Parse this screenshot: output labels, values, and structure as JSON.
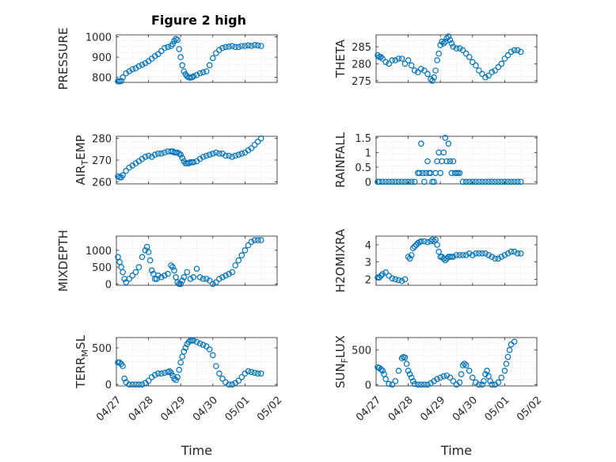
{
  "figure": {
    "title": "Figure 2 high",
    "marker_color": "#0072BD",
    "grid_color": "#d9d9d9",
    "axis_color": "#262626",
    "time_xlabel": "Time"
  },
  "chart_data": [
    {
      "type": "scatter",
      "title": "Figure 2 high",
      "ylabel": "PRESSURE",
      "xlim": [
        0,
        5
      ],
      "ylim": [
        775,
        1010
      ],
      "yticks": [
        800,
        900,
        1000
      ],
      "ytick_labels": [
        "800",
        "900",
        "1000"
      ],
      "xtick_labels": [],
      "grid": true,
      "x": [
        0.05,
        0.1,
        0.15,
        0.2,
        0.3,
        0.4,
        0.5,
        0.6,
        0.7,
        0.8,
        0.9,
        1.0,
        1.1,
        1.2,
        1.3,
        1.4,
        1.5,
        1.6,
        1.7,
        1.75,
        1.8,
        1.85,
        1.9,
        1.95,
        2.0,
        2.05,
        2.1,
        2.15,
        2.2,
        2.25,
        2.3,
        2.35,
        2.4,
        2.5,
        2.6,
        2.7,
        2.8,
        2.9,
        3.0,
        3.1,
        3.2,
        3.3,
        3.4,
        3.5,
        3.6,
        3.7,
        3.8,
        3.9,
        4.0,
        4.1,
        4.2,
        4.3,
        4.4,
        4.5
      ],
      "y": [
        780,
        780,
        782,
        800,
        820,
        830,
        840,
        845,
        855,
        862,
        870,
        880,
        892,
        905,
        915,
        930,
        945,
        950,
        955,
        965,
        980,
        990,
        985,
        940,
        900,
        860,
        830,
        815,
        805,
        800,
        798,
        800,
        805,
        812,
        820,
        825,
        830,
        860,
        895,
        920,
        935,
        945,
        950,
        952,
        955,
        950,
        950,
        955,
        955,
        958,
        955,
        960,
        958,
        955
      ]
    },
    {
      "type": "scatter",
      "ylabel": "THETA",
      "xlim": [
        0,
        5
      ],
      "ylim": [
        274.5,
        288.5
      ],
      "yticks": [
        275,
        280,
        285
      ],
      "ytick_labels": [
        "275",
        "280",
        "285"
      ],
      "xtick_labels": [],
      "grid": true,
      "x": [
        0.05,
        0.1,
        0.15,
        0.2,
        0.3,
        0.4,
        0.5,
        0.6,
        0.7,
        0.8,
        0.9,
        1.0,
        1.1,
        1.2,
        1.3,
        1.4,
        1.5,
        1.6,
        1.7,
        1.75,
        1.8,
        1.85,
        1.9,
        1.95,
        2.0,
        2.05,
        2.1,
        2.15,
        2.2,
        2.25,
        2.3,
        2.35,
        2.4,
        2.5,
        2.6,
        2.7,
        2.8,
        2.9,
        3.0,
        3.1,
        3.2,
        3.3,
        3.4,
        3.5,
        3.6,
        3.7,
        3.8,
        3.9,
        4.0,
        4.1,
        4.2,
        4.3,
        4.4,
        4.5
      ],
      "y": [
        282.5,
        282,
        282,
        281.5,
        280.5,
        280,
        281,
        281,
        281.5,
        281.5,
        280,
        281,
        279.5,
        278,
        277.5,
        278.5,
        278,
        277,
        275.5,
        275,
        276,
        278,
        281,
        283,
        285.5,
        286.5,
        286,
        286.5,
        287.5,
        288,
        287,
        286,
        285,
        284.5,
        284.5,
        284,
        283,
        282,
        280.5,
        279.5,
        278,
        277,
        276,
        276.5,
        277.5,
        278,
        279,
        280,
        281.5,
        282.5,
        283.5,
        284,
        284,
        283.5
      ]
    },
    {
      "type": "scatter",
      "ylabel": "AIR_TEMP",
      "ylabel_parts": {
        "main": "AIR",
        "sub": "T",
        "rest": "EMP"
      },
      "xlim": [
        0,
        5
      ],
      "ylim": [
        259,
        281
      ],
      "yticks": [
        260,
        270,
        280
      ],
      "ytick_labels": [
        "260",
        "270",
        "280"
      ],
      "xtick_labels": [],
      "grid": true,
      "x": [
        0.05,
        0.1,
        0.15,
        0.2,
        0.3,
        0.4,
        0.5,
        0.6,
        0.7,
        0.8,
        0.9,
        1.0,
        1.1,
        1.2,
        1.3,
        1.4,
        1.5,
        1.6,
        1.7,
        1.75,
        1.8,
        1.85,
        1.9,
        1.95,
        2.0,
        2.05,
        2.1,
        2.15,
        2.2,
        2.25,
        2.3,
        2.35,
        2.4,
        2.5,
        2.6,
        2.7,
        2.8,
        2.9,
        3.0,
        3.1,
        3.2,
        3.3,
        3.4,
        3.5,
        3.6,
        3.7,
        3.8,
        3.9,
        4.0,
        4.1,
        4.2,
        4.3,
        4.4,
        4.5
      ],
      "y": [
        262.5,
        262,
        262,
        263,
        265,
        266.5,
        267.5,
        268.5,
        269.5,
        270.5,
        271.5,
        272,
        271.5,
        272.5,
        273,
        273,
        273.5,
        274,
        274,
        274,
        273.5,
        273.5,
        273.5,
        273,
        272.5,
        271,
        269.5,
        268.5,
        268.5,
        268.5,
        269,
        269,
        269,
        269.5,
        270.5,
        271.5,
        272,
        272.5,
        273,
        273.5,
        273,
        273,
        272,
        272,
        271.5,
        272,
        272.5,
        273,
        273.5,
        274.5,
        275.5,
        277,
        278.5,
        280
      ]
    },
    {
      "type": "scatter",
      "ylabel": "RAINFALL",
      "xlim": [
        0,
        5
      ],
      "ylim": [
        -0.07,
        1.55
      ],
      "yticks": [
        0,
        0.5,
        1,
        1.5
      ],
      "ytick_labels": [
        "0",
        "0.5",
        "1",
        "1.5"
      ],
      "xtick_labels": [],
      "grid": true,
      "x": [
        0.05,
        0.1,
        0.2,
        0.3,
        0.4,
        0.5,
        0.6,
        0.7,
        0.8,
        0.9,
        1.0,
        1.1,
        1.2,
        1.3,
        1.35,
        1.4,
        1.45,
        1.5,
        1.55,
        1.6,
        1.65,
        1.7,
        1.75,
        1.8,
        1.85,
        1.9,
        1.95,
        2.0,
        2.05,
        2.1,
        2.15,
        2.2,
        2.25,
        2.3,
        2.35,
        2.4,
        2.45,
        2.5,
        2.55,
        2.6,
        2.7,
        2.8,
        2.9,
        3.0,
        3.1,
        3.2,
        3.3,
        3.4,
        3.5,
        3.6,
        3.7,
        3.8,
        3.9,
        4.0,
        4.1,
        4.2,
        4.3,
        4.4,
        4.5
      ],
      "y": [
        0,
        0,
        0,
        0,
        0,
        0,
        0,
        0,
        0,
        0,
        0,
        0,
        0,
        0.3,
        0.3,
        1.3,
        0.3,
        0,
        0.3,
        0.7,
        0.3,
        0.3,
        0,
        0,
        0.3,
        0.7,
        1.0,
        0.3,
        0.7,
        1.0,
        1.5,
        0.7,
        1.3,
        0.7,
        0.3,
        0.7,
        0.3,
        0.3,
        0.3,
        0.3,
        0,
        0,
        0,
        0,
        0,
        0,
        0,
        0,
        0,
        0,
        0,
        0,
        0,
        0,
        0,
        0,
        0,
        0,
        0
      ]
    },
    {
      "type": "scatter",
      "ylabel": "MIXDEPTH",
      "xlim": [
        0,
        5
      ],
      "ylim": [
        -40,
        1420
      ],
      "yticks": [
        0,
        500,
        1000
      ],
      "ytick_labels": [
        "0",
        "500",
        "1000"
      ],
      "xtick_labels": [],
      "grid": true,
      "x": [
        0.05,
        0.1,
        0.15,
        0.2,
        0.25,
        0.3,
        0.4,
        0.5,
        0.6,
        0.7,
        0.8,
        0.9,
        0.95,
        1.0,
        1.05,
        1.1,
        1.15,
        1.2,
        1.25,
        1.3,
        1.4,
        1.5,
        1.6,
        1.7,
        1.75,
        1.8,
        1.85,
        1.9,
        1.95,
        2.0,
        2.05,
        2.1,
        2.2,
        2.3,
        2.4,
        2.5,
        2.6,
        2.7,
        2.8,
        2.9,
        3.0,
        3.1,
        3.2,
        3.3,
        3.4,
        3.5,
        3.6,
        3.7,
        3.8,
        3.9,
        4.0,
        4.1,
        4.2,
        4.3,
        4.4,
        4.5
      ],
      "y": [
        800,
        650,
        500,
        350,
        150,
        50,
        150,
        250,
        350,
        500,
        800,
        1000,
        1100,
        950,
        700,
        400,
        300,
        150,
        150,
        250,
        200,
        250,
        300,
        550,
        500,
        400,
        200,
        50,
        0,
        0,
        100,
        200,
        350,
        150,
        200,
        450,
        200,
        150,
        150,
        100,
        0,
        50,
        150,
        200,
        250,
        300,
        350,
        550,
        700,
        850,
        1000,
        1150,
        1250,
        1300,
        1300,
        1300
      ]
    },
    {
      "type": "scatter",
      "ylabel": "H2OMIXRA",
      "xlim": [
        0,
        5
      ],
      "ylim": [
        1.65,
        4.5
      ],
      "yticks": [
        2,
        3,
        4
      ],
      "ytick_labels": [
        "2",
        "3",
        "4"
      ],
      "xtick_labels": [],
      "grid": true,
      "x": [
        0.05,
        0.1,
        0.15,
        0.2,
        0.3,
        0.4,
        0.5,
        0.6,
        0.7,
        0.8,
        0.9,
        1.0,
        1.05,
        1.1,
        1.15,
        1.2,
        1.25,
        1.3,
        1.35,
        1.4,
        1.5,
        1.6,
        1.7,
        1.75,
        1.8,
        1.85,
        1.9,
        1.95,
        2.0,
        2.05,
        2.1,
        2.15,
        2.2,
        2.25,
        2.3,
        2.35,
        2.4,
        2.5,
        2.6,
        2.7,
        2.8,
        2.9,
        3.0,
        3.1,
        3.2,
        3.3,
        3.4,
        3.5,
        3.6,
        3.7,
        3.8,
        3.9,
        4.0,
        4.1,
        4.2,
        4.3,
        4.4,
        4.5
      ],
      "y": [
        2.1,
        2.1,
        2.2,
        2.3,
        2.4,
        2.2,
        2.05,
        2.0,
        1.95,
        1.9,
        2.0,
        3.3,
        3.2,
        3.4,
        3.8,
        3.9,
        4.0,
        4.1,
        4.15,
        4.2,
        4.2,
        4.15,
        4.2,
        4.3,
        4.2,
        4.3,
        4.0,
        3.6,
        3.3,
        3.3,
        3.2,
        3.1,
        3.2,
        3.3,
        3.3,
        3.3,
        3.3,
        3.4,
        3.4,
        3.4,
        3.4,
        3.5,
        3.4,
        3.5,
        3.5,
        3.5,
        3.5,
        3.4,
        3.3,
        3.2,
        3.2,
        3.3,
        3.4,
        3.5,
        3.6,
        3.6,
        3.5,
        3.5
      ]
    },
    {
      "type": "scatter",
      "ylabel": "TERR_MSL",
      "ylabel_parts": {
        "main": "TERR",
        "sub": "M",
        "rest": "SL"
      },
      "xlim": [
        0,
        5
      ],
      "ylim": [
        -20,
        640
      ],
      "yticks": [
        0,
        500
      ],
      "ytick_labels": [
        "0",
        "500"
      ],
      "xticks": [
        0,
        1,
        2,
        3,
        4,
        5
      ],
      "xtick_labels": [
        "04/27",
        "04/28",
        "04/29",
        "04/30",
        "05/01",
        "05/02"
      ],
      "xlabel": "Time",
      "grid": true,
      "x": [
        0.05,
        0.1,
        0.15,
        0.2,
        0.25,
        0.3,
        0.4,
        0.5,
        0.6,
        0.7,
        0.8,
        0.9,
        1.0,
        1.1,
        1.2,
        1.3,
        1.4,
        1.5,
        1.6,
        1.65,
        1.7,
        1.75,
        1.8,
        1.85,
        1.9,
        1.95,
        2.0,
        2.05,
        2.1,
        2.15,
        2.2,
        2.25,
        2.3,
        2.35,
        2.4,
        2.5,
        2.6,
        2.7,
        2.8,
        2.9,
        3.0,
        3.1,
        3.2,
        3.3,
        3.4,
        3.5,
        3.6,
        3.7,
        3.8,
        3.9,
        4.0,
        4.1,
        4.2,
        4.3,
        4.4,
        4.5
      ],
      "y": [
        300,
        300,
        280,
        250,
        80,
        30,
        0,
        0,
        0,
        0,
        0,
        20,
        50,
        100,
        130,
        150,
        150,
        160,
        170,
        180,
        160,
        120,
        80,
        60,
        100,
        200,
        300,
        380,
        450,
        500,
        550,
        580,
        600,
        600,
        600,
        580,
        560,
        540,
        520,
        480,
        400,
        250,
        150,
        80,
        30,
        0,
        0,
        20,
        50,
        100,
        150,
        180,
        170,
        160,
        150,
        150
      ]
    },
    {
      "type": "scatter",
      "ylabel": "SUN_FLUX",
      "ylabel_parts": {
        "main": "SUN",
        "sub": "F",
        "rest": "LUX"
      },
      "xlim": [
        0,
        5
      ],
      "ylim": [
        -20,
        680
      ],
      "yticks": [
        0,
        500
      ],
      "ytick_labels": [
        "0",
        "500"
      ],
      "xticks": [
        0,
        1,
        2,
        3,
        4,
        5
      ],
      "xtick_labels": [
        "04/27",
        "04/28",
        "04/29",
        "04/30",
        "05/01",
        "05/02"
      ],
      "xlabel": "Time",
      "grid": true,
      "x": [
        0.05,
        0.1,
        0.15,
        0.2,
        0.25,
        0.3,
        0.4,
        0.5,
        0.6,
        0.7,
        0.8,
        0.85,
        0.9,
        0.95,
        1.0,
        1.05,
        1.1,
        1.15,
        1.2,
        1.3,
        1.4,
        1.5,
        1.6,
        1.7,
        1.8,
        1.9,
        2.0,
        2.1,
        2.2,
        2.3,
        2.4,
        2.5,
        2.6,
        2.65,
        2.7,
        2.75,
        2.8,
        2.9,
        3.0,
        3.1,
        3.2,
        3.3,
        3.35,
        3.4,
        3.45,
        3.5,
        3.55,
        3.6,
        3.7,
        3.8,
        3.9,
        4.0,
        4.05,
        4.1,
        4.15,
        4.2,
        4.3
      ],
      "y": [
        250,
        240,
        220,
        200,
        150,
        80,
        10,
        0,
        50,
        200,
        380,
        400,
        390,
        300,
        200,
        150,
        100,
        50,
        10,
        0,
        0,
        0,
        0,
        20,
        50,
        80,
        100,
        120,
        130,
        100,
        50,
        0,
        30,
        150,
        280,
        300,
        280,
        200,
        100,
        30,
        0,
        0,
        50,
        150,
        200,
        120,
        50,
        0,
        0,
        30,
        100,
        200,
        300,
        400,
        500,
        580,
        620
      ]
    }
  ]
}
